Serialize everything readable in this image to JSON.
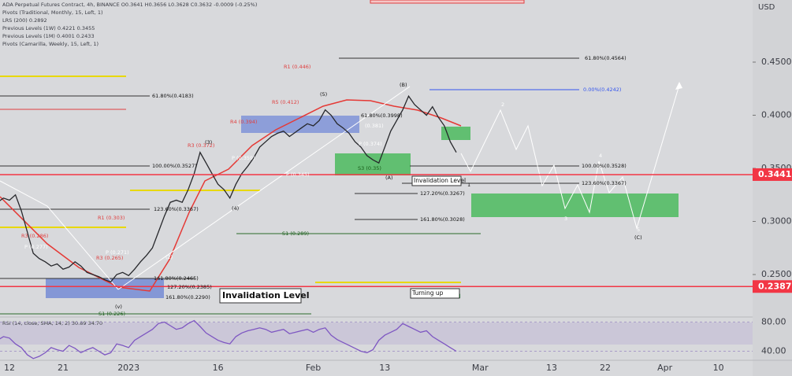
{
  "header": {
    "lines": [
      "ADA Perpetual Futures Contract, 4h, BINANCE O0.3641 H0.3656 L0.3628 C0.3632 -0.0009 (-0.25%)",
      "Pivots (Traditional, Monthly, 15, Left, 1)",
      "LRS (200) 0.2892",
      "Previous Levels (1W) 0.4221 0.3455",
      "Previous Levels (1M) 0.4001 0.2433",
      "Pivots (Camarilla, Weekly, 15, Left, 1)"
    ]
  },
  "chart_data": [
    {
      "type": "line",
      "axis_label": "USD",
      "color": "#26272b",
      "categories": [
        null,
        null,
        "12",
        null,
        null,
        null,
        null,
        null,
        null,
        null,
        null,
        "21",
        null,
        null,
        null,
        null,
        null,
        null,
        null,
        null,
        null,
        null,
        "2023",
        null,
        null,
        null,
        null,
        null,
        null,
        null,
        null,
        null,
        null,
        null,
        null,
        null,
        null,
        "16",
        null,
        null,
        null,
        null,
        null,
        null,
        null,
        null,
        null,
        null,
        null,
        null,
        null,
        null,
        null,
        "Feb",
        null,
        null,
        null,
        null,
        null,
        null,
        null,
        null,
        null,
        null,
        null,
        "13",
        null,
        null,
        null,
        null,
        null,
        null,
        null,
        null,
        null,
        null,
        null,
        null,
        null,
        null,
        null,
        "Mar",
        null,
        null,
        null,
        null,
        null,
        null,
        null,
        null,
        null,
        null,
        null,
        "13",
        null,
        null,
        null,
        null,
        null,
        null,
        null,
        null,
        "22",
        null,
        null,
        null,
        null,
        null,
        null,
        null,
        null,
        null,
        "Apr",
        null,
        null,
        null,
        null,
        null,
        null,
        null,
        null,
        "10",
        null,
        null,
        null,
        null,
        null
      ],
      "values": [
        0.318,
        0.322,
        0.32,
        0.325,
        0.31,
        0.29,
        0.27,
        0.265,
        0.262,
        0.258,
        0.26,
        0.255,
        0.257,
        0.262,
        0.258,
        0.252,
        0.25,
        0.248,
        0.245,
        0.243,
        0.25,
        0.252,
        0.249,
        0.255,
        0.262,
        0.268,
        0.275,
        0.29,
        0.305,
        0.318,
        0.32,
        0.318,
        0.33,
        0.345,
        0.365,
        0.355,
        0.345,
        0.335,
        0.33,
        0.322,
        0.335,
        0.345,
        0.352,
        0.36,
        0.37,
        0.375,
        0.38,
        0.383,
        0.385,
        0.38,
        0.384,
        0.388,
        0.392,
        0.39,
        0.395,
        0.405,
        0.4,
        0.392,
        0.388,
        0.383,
        0.375,
        0.37,
        0.362,
        0.358,
        0.355,
        0.37,
        0.385,
        0.395,
        0.405,
        0.418,
        0.41,
        0.405,
        0.4,
        0.408,
        0.398,
        0.39,
        0.375,
        0.365,
        null,
        null,
        null,
        null,
        null,
        null,
        null,
        null,
        null,
        null,
        null,
        null,
        null,
        null,
        null,
        null,
        null,
        null,
        null,
        null,
        null,
        null,
        null,
        null,
        null,
        null,
        null,
        null,
        null,
        null,
        null,
        null,
        null,
        null,
        null,
        null,
        null,
        null,
        null,
        null,
        null,
        null,
        null,
        null,
        null,
        null,
        null,
        null,
        null
      ],
      "ylim": [
        0.21,
        0.5085
      ],
      "yticks": [
        {
          "value": 0.25,
          "label": "0.2500"
        },
        {
          "value": 0.3,
          "label": "0.3000"
        },
        {
          "value": 0.35,
          "label": "0.3500"
        },
        {
          "value": 0.4,
          "label": "0.4000"
        },
        {
          "value": 0.45,
          "label": "0.4500"
        }
      ],
      "price_labels": [
        {
          "value": 0.3441,
          "label": "0.3441",
          "color": "#f23645"
        },
        {
          "value": 0.2387,
          "label": "0.2387",
          "color": "#f23645"
        }
      ]
    },
    {
      "type": "line",
      "title": "RSI (14, close, SMA, 14, 2) 30.89 34.70",
      "color": "#7e57c2",
      "values": [
        55,
        60,
        58,
        50,
        45,
        35,
        30,
        33,
        38,
        45,
        42,
        40,
        48,
        44,
        38,
        42,
        45,
        40,
        35,
        38,
        50,
        48,
        45,
        55,
        60,
        65,
        70,
        78,
        80,
        75,
        70,
        72,
        78,
        82,
        74,
        65,
        60,
        55,
        52,
        50,
        60,
        65,
        68,
        70,
        72,
        70,
        66,
        68,
        70,
        64,
        66,
        68,
        70,
        66,
        70,
        72,
        62,
        56,
        52,
        48,
        44,
        40,
        38,
        42,
        55,
        62,
        66,
        70,
        78,
        74,
        70,
        66,
        68,
        60,
        55,
        50,
        45,
        40
      ],
      "ylim": [
        27.6,
        86.9
      ],
      "yticks": [
        {
          "value": 80,
          "label": "80.00"
        },
        {
          "value": 40,
          "label": "40.00"
        }
      ]
    }
  ],
  "annotations": [
    "R1 (0.446)",
    "61.80%(0.4564)",
    "0.00%(0.4242)",
    "61.80%(0.4183)",
    "R5 (0.412)",
    "(5)",
    "(B)",
    "R4 (0.394)",
    "(0.381)",
    "61.80%(0.3998)",
    "R3 (0.372)",
    "(3)",
    "P (0.374)",
    "P (0.359)",
    "S3 (0.35)",
    "100.00%(0.3527)",
    "P (0.345)",
    "(A)",
    "100.00%(0.3528)",
    "Invalidation Level",
    "123.60%(0.3367)",
    "127.20%(0.3267)",
    "123.60%(0.3367)",
    "R1 (0.303)",
    "161.80%(0.3028)",
    "S1 (0.289)",
    "R3 (0.286)",
    "P (0.277)",
    "P (0.271)",
    "R3 (0.265)",
    "161.80%(0.2465)",
    "127.20%(0.2385)",
    "161.80%(0.2290)",
    "S1 (0.226)",
    "(v)",
    "Invalidation Level",
    "Turning up",
    "(C)",
    "2",
    "4",
    "3",
    "5",
    "1",
    "(4)",
    "(2)"
  ]
}
